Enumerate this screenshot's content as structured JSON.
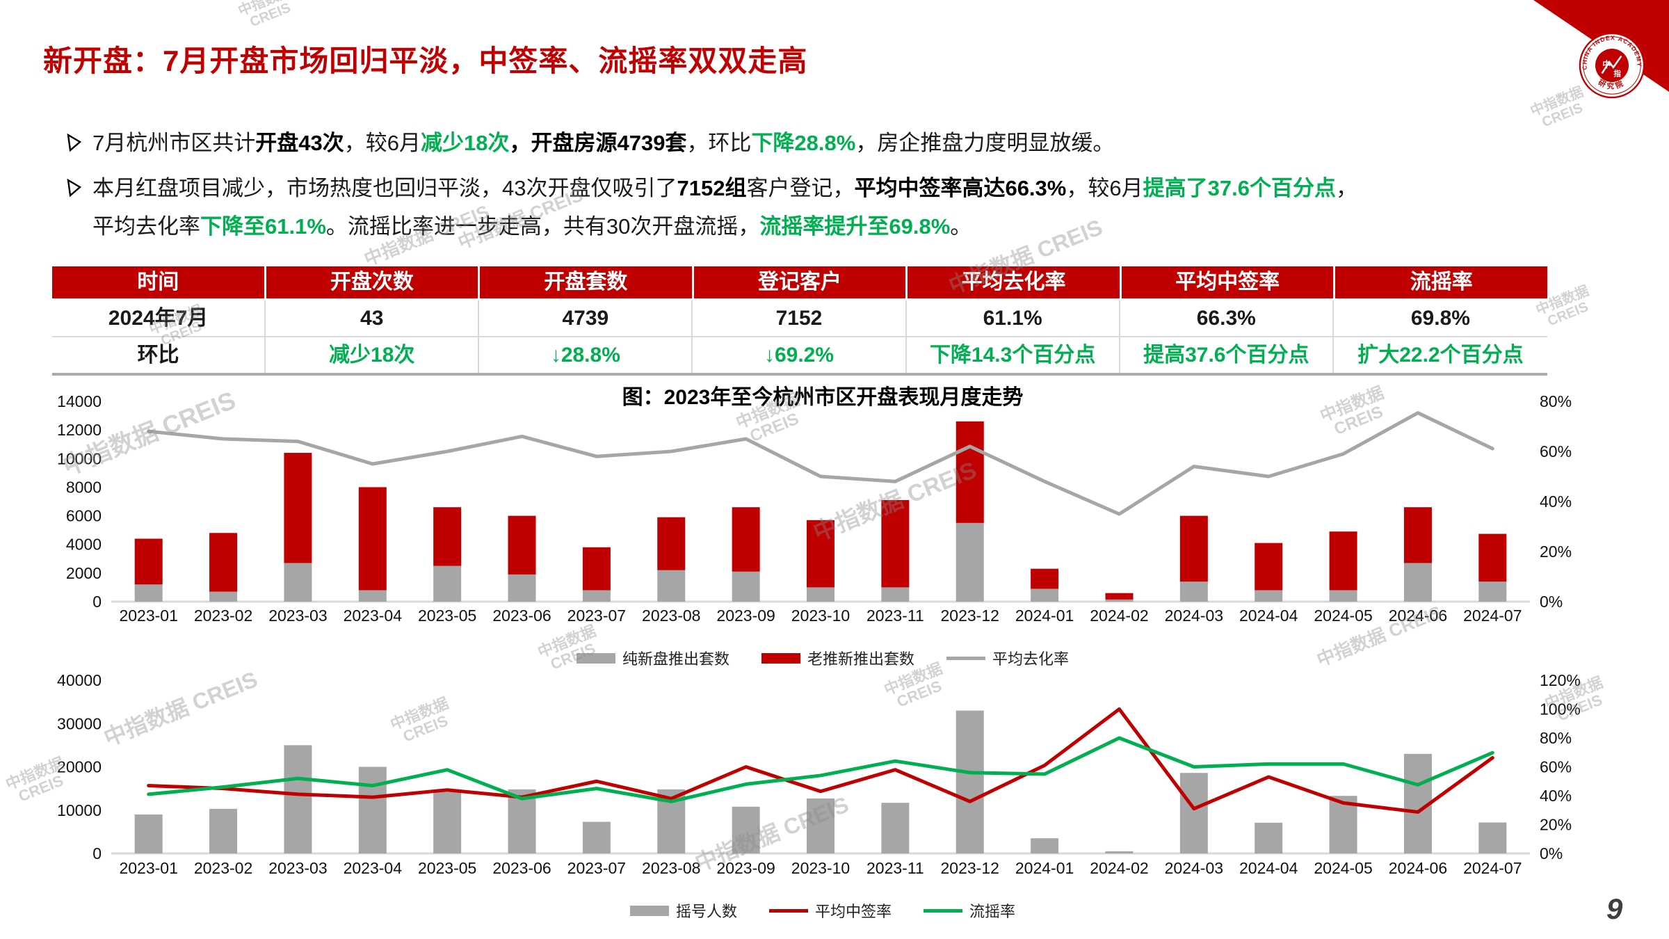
{
  "title": "新开盘：7月开盘市场回归平淡，中签率、流摇率双双走高",
  "page": {
    "number": "9"
  },
  "logo": {
    "arc_text": "CHINA INDEX ACADEMY",
    "seal_char1": "中",
    "seal_char2": "指",
    "seal_bottom": "研究院"
  },
  "watermark": {
    "line1": "中指数据",
    "line2": "CREIS"
  },
  "colors": {
    "accent_red": "#C00000",
    "green": "#00B050",
    "bar_gray": "#A6A6A6"
  },
  "bullets": {
    "b1": {
      "s1": "7月杭州市区共计",
      "s2": "开盘43次",
      "s3": "，较6月",
      "s4": "减少18次",
      "s5": "，",
      "s6": "开盘房源4739套",
      "s7": "，环比",
      "s8": "下降28.8%",
      "s9": "，房企推盘力度明显放缓。"
    },
    "b2": {
      "s1": "本月红盘项目减少，市场热度也回归平淡，43次开盘仅吸引了",
      "s2": "7152组",
      "s3": "客户登记，",
      "s4": "平均中签率高达66.3%",
      "s5": "，较6月",
      "s6": "提高了37.6个百分点",
      "s7": "，",
      "s8": "平均去化率",
      "s9": "下降至61.1%",
      "s10": "。流摇比率进一步走高，共有30次开盘流摇，",
      "s11": "流摇率提升至69.8%",
      "s12": "。"
    }
  },
  "table": {
    "headers": [
      "时间",
      "开盘次数",
      "开盘套数",
      "登记客户",
      "平均去化率",
      "平均中签率",
      "流摇率"
    ],
    "row1": [
      "2024年7月",
      "43",
      "4739",
      "7152",
      "61.1%",
      "66.3%",
      "69.8%"
    ],
    "row2": [
      "环比",
      "减少18次",
      "↓28.8%",
      "↓69.2%",
      "下降14.3个百分点",
      "提高37.6个百分点",
      "扩大22.2个百分点"
    ]
  },
  "chart_data": [
    {
      "type": "bar+line",
      "title": "图：2023年至今杭州市区开盘表现月度走势",
      "categories": [
        "2023-01",
        "2023-02",
        "2023-03",
        "2023-04",
        "2023-05",
        "2023-06",
        "2023-07",
        "2023-08",
        "2023-09",
        "2023-10",
        "2023-11",
        "2023-12",
        "2024-01",
        "2024-02",
        "2024-03",
        "2024-04",
        "2024-05",
        "2024-06",
        "2024-07"
      ],
      "series": [
        {
          "name": "纯新盘推出套数",
          "type": "bar",
          "axis": "left",
          "color": "#A6A6A6",
          "values": [
            1200,
            700,
            2700,
            800,
            2500,
            1900,
            800,
            2200,
            2100,
            1000,
            1000,
            5500,
            900,
            150,
            1400,
            800,
            800,
            2700,
            1400
          ]
        },
        {
          "name": "老推新推出套数",
          "type": "bar",
          "axis": "left",
          "color": "#C00000",
          "stacked": true,
          "values": [
            3200,
            4100,
            7700,
            7200,
            4100,
            4100,
            3000,
            3700,
            4500,
            4700,
            6100,
            7100,
            1400,
            450,
            4600,
            3300,
            4100,
            3900,
            3339
          ]
        },
        {
          "name": "平均去化率",
          "type": "line",
          "axis": "right",
          "color": "#A6A6A6",
          "values": [
            68,
            65,
            64,
            55,
            60,
            66,
            58,
            60,
            65,
            50,
            48,
            62,
            48,
            35,
            54,
            50,
            59,
            75.4,
            61.1
          ]
        }
      ],
      "left_axis": {
        "min": 0,
        "max": 14000,
        "step": 2000
      },
      "right_axis": {
        "min": 0,
        "max": 80,
        "step": 20,
        "suffix": "%"
      },
      "grid": false,
      "legend_position": "bottom"
    },
    {
      "type": "bar+line",
      "title": "",
      "categories": [
        "2023-01",
        "2023-02",
        "2023-03",
        "2023-04",
        "2023-05",
        "2023-06",
        "2023-07",
        "2023-08",
        "2023-09",
        "2023-10",
        "2023-11",
        "2023-12",
        "2024-01",
        "2024-02",
        "2024-03",
        "2024-04",
        "2024-05",
        "2024-06",
        "2024-07"
      ],
      "series": [
        {
          "name": "摇号人数",
          "type": "bar",
          "axis": "left",
          "color": "#A6A6A6",
          "values": [
            9000,
            10300,
            25000,
            20000,
            14200,
            14800,
            7300,
            14800,
            10800,
            12700,
            11700,
            33000,
            3500,
            500,
            18600,
            7100,
            13300,
            23000,
            7152
          ]
        },
        {
          "name": "平均中签率",
          "type": "line",
          "axis": "right",
          "color": "#C00000",
          "values": [
            47,
            45,
            41,
            39,
            44,
            39,
            50,
            38,
            60,
            43,
            58,
            36,
            61,
            100,
            31,
            53,
            35,
            28.7,
            66.3
          ]
        },
        {
          "name": "流摇率",
          "type": "line",
          "axis": "right",
          "color": "#00B050",
          "values": [
            41,
            46,
            52,
            47,
            58,
            38,
            45,
            36,
            48,
            54,
            64,
            56,
            55,
            80,
            60,
            62,
            62,
            47.6,
            69.8
          ]
        }
      ],
      "left_axis": {
        "min": 0,
        "max": 40000,
        "step": 10000
      },
      "right_axis": {
        "min": 0,
        "max": 120,
        "step": 20,
        "suffix": "%"
      },
      "grid": false,
      "legend_position": "bottom"
    }
  ]
}
